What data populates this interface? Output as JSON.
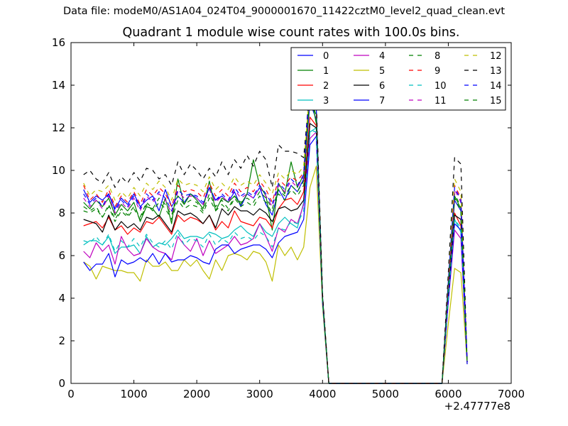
{
  "chart_data": {
    "type": "line",
    "suptitle": "Data file: modeM0/AS1A04_024T04_9000001670_11422cztM0_level2_quad_clean.evt",
    "title": "Quadrant 1 module wise count rates with 100.0s bins.",
    "xlabel": "",
    "ylabel": "",
    "x_offset_label": "+2.47777e8",
    "xlim": [
      0,
      7000
    ],
    "ylim": [
      0,
      16
    ],
    "xticks": [
      0,
      1000,
      2000,
      3000,
      4000,
      5000,
      6000,
      7000
    ],
    "yticks": [
      0,
      2,
      4,
      6,
      8,
      10,
      12,
      14,
      16
    ],
    "grid": false,
    "legend_position": "top-right",
    "x": [
      200,
      300,
      400,
      500,
      600,
      700,
      800,
      900,
      1000,
      1100,
      1200,
      1300,
      1400,
      1500,
      1600,
      1700,
      1800,
      1900,
      2000,
      2100,
      2200,
      2300,
      2400,
      2500,
      2600,
      2700,
      2800,
      2900,
      3000,
      3100,
      3200,
      3300,
      3400,
      3500,
      3600,
      3700,
      3800,
      3900,
      4000,
      4100,
      4200,
      4300,
      4400,
      4500,
      4600,
      4700,
      4800,
      4900,
      5000,
      5100,
      5200,
      5300,
      5400,
      5500,
      5600,
      5700,
      5800,
      5900,
      6000,
      6100,
      6200,
      6300
    ],
    "series": [
      {
        "name": "0",
        "color": "#0000ff",
        "dashed": false,
        "values": [
          9.1,
          8.5,
          8.8,
          8.6,
          8.9,
          8.2,
          8.7,
          8.4,
          8.9,
          8.3,
          8.6,
          8.8,
          8.1,
          9.1,
          8.3,
          8.8,
          8.5,
          8.9,
          8.7,
          8.4,
          9.2,
          8.6,
          8.8,
          8.5,
          9.0,
          8.3,
          8.9,
          8.7,
          9.2,
          8.4,
          7.9,
          9.1,
          8.6,
          9.3,
          9.0,
          9.6,
          13.2,
          12.4,
          4.0,
          0,
          0,
          0,
          0,
          0,
          0,
          0,
          0,
          0,
          0,
          0,
          0,
          0,
          0,
          0,
          0,
          0,
          0,
          0,
          4.5,
          8.6,
          8.1,
          1.0
        ]
      },
      {
        "name": "1",
        "color": "#008000",
        "dashed": false,
        "values": [
          8.5,
          8.2,
          8.6,
          8.3,
          8.7,
          7.9,
          8.4,
          8.1,
          8.5,
          7.6,
          8.3,
          8.2,
          7.8,
          8.7,
          7.5,
          9.6,
          8.4,
          8.9,
          8.6,
          8.2,
          9.5,
          8.1,
          8.7,
          8.5,
          8.8,
          8.4,
          8.9,
          10.5,
          9.3,
          8.8,
          7.2,
          9.4,
          8.9,
          10.4,
          9.2,
          9.8,
          13.8,
          12.2,
          4.0,
          0,
          0,
          0,
          0,
          0,
          0,
          0,
          0,
          0,
          0,
          0,
          0,
          0,
          0,
          0,
          0,
          0,
          0,
          0,
          4.6,
          8.8,
          8.2,
          1.0
        ]
      },
      {
        "name": "2",
        "color": "#ff0000",
        "dashed": false,
        "values": [
          7.4,
          7.5,
          7.6,
          7.3,
          7.8,
          7.2,
          7.4,
          7.0,
          7.3,
          7.1,
          7.6,
          7.5,
          7.8,
          7.4,
          7.0,
          7.9,
          7.6,
          7.8,
          7.7,
          7.5,
          7.9,
          7.2,
          7.6,
          7.3,
          8.1,
          7.6,
          7.5,
          7.4,
          7.8,
          7.7,
          7.3,
          8.2,
          8.6,
          8.7,
          8.4,
          9.0,
          12.5,
          12.1,
          3.9,
          0,
          0,
          0,
          0,
          0,
          0,
          0,
          0,
          0,
          0,
          0,
          0,
          0,
          0,
          0,
          0,
          0,
          0,
          0,
          4.3,
          8.0,
          7.4,
          1.0
        ]
      },
      {
        "name": "3",
        "color": "#00bfbf",
        "dashed": false,
        "values": [
          6.5,
          6.7,
          6.7,
          6.5,
          6.9,
          6.1,
          6.4,
          6.4,
          6.5,
          6.1,
          6.9,
          6.4,
          6.6,
          6.5,
          6.8,
          7.2,
          6.8,
          6.9,
          6.9,
          6.8,
          7.1,
          7.0,
          6.8,
          6.9,
          7.2,
          7.4,
          7.1,
          6.9,
          7.5,
          7.1,
          6.9,
          7.5,
          7.8,
          7.5,
          7.3,
          8.5,
          11.8,
          12.0,
          3.8,
          0,
          0,
          0,
          0,
          0,
          0,
          0,
          0,
          0,
          0,
          0,
          0,
          0,
          0,
          0,
          0,
          0,
          0,
          0,
          4.0,
          7.7,
          7.1,
          1.0
        ]
      },
      {
        "name": "4",
        "color": "#bf00bf",
        "dashed": false,
        "values": [
          6.2,
          5.9,
          6.6,
          6.2,
          6.5,
          5.6,
          6.9,
          6.3,
          6.0,
          6.1,
          6.8,
          6.4,
          6.2,
          6.1,
          5.8,
          6.9,
          6.5,
          6.2,
          6.8,
          6.0,
          6.7,
          6.1,
          6.3,
          6.5,
          6.9,
          6.5,
          6.6,
          6.8,
          7.5,
          6.9,
          6.2,
          7.3,
          7.1,
          7.7,
          7.5,
          8.4,
          11.5,
          11.8,
          3.8,
          0,
          0,
          0,
          0,
          0,
          0,
          0,
          0,
          0,
          0,
          0,
          0,
          0,
          0,
          0,
          0,
          0,
          0,
          0,
          3.8,
          7.2,
          6.8,
          1.0
        ]
      },
      {
        "name": "5",
        "color": "#bfbf00",
        "dashed": false,
        "values": [
          5.7,
          5.5,
          4.9,
          5.5,
          5.4,
          5.3,
          5.3,
          5.2,
          5.2,
          4.8,
          5.8,
          5.5,
          5.5,
          5.7,
          5.3,
          5.3,
          5.8,
          5.5,
          5.8,
          5.3,
          4.9,
          5.8,
          5.3,
          6.0,
          6.1,
          6.0,
          5.8,
          6.2,
          6.1,
          5.7,
          4.8,
          6.5,
          6.0,
          6.4,
          5.8,
          6.4,
          9.2,
          10.2,
          3.6,
          0,
          0,
          0,
          0,
          0,
          0,
          0,
          0,
          0,
          0,
          0,
          0,
          0,
          0,
          0,
          0,
          0,
          0,
          0,
          2.8,
          5.4,
          5.2,
          0.9
        ]
      },
      {
        "name": "6",
        "color": "#000000",
        "dashed": false,
        "values": [
          7.7,
          7.6,
          7.5,
          7.1,
          7.9,
          7.2,
          7.6,
          7.3,
          7.5,
          7.2,
          7.8,
          7.7,
          7.9,
          7.5,
          7.1,
          8.1,
          7.9,
          8.0,
          7.8,
          7.5,
          7.9,
          7.3,
          8.2,
          7.9,
          8.3,
          8.1,
          8.1,
          7.9,
          8.2,
          8.0,
          7.6,
          8.2,
          8.3,
          8.1,
          8.2,
          8.6,
          12.2,
          12.0,
          3.9,
          0,
          0,
          0,
          0,
          0,
          0,
          0,
          0,
          0,
          0,
          0,
          0,
          0,
          0,
          0,
          0,
          0,
          0,
          0,
          4.1,
          7.9,
          7.7,
          1.0
        ]
      },
      {
        "name": "7",
        "color": "#0000ff",
        "dashed": false,
        "values": [
          5.7,
          5.3,
          5.6,
          5.6,
          6.1,
          5.0,
          5.8,
          5.6,
          5.7,
          5.9,
          5.7,
          6.1,
          5.6,
          6.1,
          5.7,
          5.8,
          5.8,
          6.0,
          5.9,
          5.7,
          5.6,
          6.3,
          6.5,
          6.5,
          6.1,
          6.3,
          6.4,
          6.5,
          6.5,
          6.3,
          5.9,
          6.6,
          6.9,
          7.0,
          7.1,
          7.7,
          11.2,
          11.6,
          3.8,
          0,
          0,
          0,
          0,
          0,
          0,
          0,
          0,
          0,
          0,
          0,
          0,
          0,
          0,
          0,
          0,
          0,
          0,
          0,
          3.9,
          7.5,
          7.2,
          0.9
        ]
      },
      {
        "name": "8",
        "color": "#008000",
        "dashed": true,
        "values": [
          8.3,
          8.1,
          8.3,
          7.8,
          8.4,
          7.7,
          8.2,
          7.9,
          8.3,
          7.8,
          8.5,
          8.2,
          8.7,
          8.4,
          7.9,
          8.8,
          8.4,
          8.6,
          8.5,
          8.1,
          8.9,
          8.3,
          8.6,
          8.2,
          8.8,
          8.5,
          8.7,
          8.5,
          9.0,
          8.7,
          8.2,
          9.1,
          8.8,
          9.3,
          9.0,
          9.5,
          13.6,
          12.8,
          4.1,
          0,
          0,
          0,
          0,
          0,
          0,
          0,
          0,
          0,
          0,
          0,
          0,
          0,
          0,
          0,
          0,
          0,
          0,
          0,
          4.6,
          8.9,
          8.3,
          1.0
        ]
      },
      {
        "name": "9",
        "color": "#ff0000",
        "dashed": true,
        "values": [
          9.3,
          8.6,
          8.9,
          8.5,
          9.1,
          8.3,
          8.8,
          8.5,
          9.0,
          8.4,
          9.1,
          8.8,
          9.2,
          8.9,
          8.3,
          9.3,
          9.0,
          9.1,
          9.0,
          8.7,
          9.4,
          8.8,
          9.1,
          8.8,
          9.4,
          9.0,
          9.2,
          9.0,
          9.5,
          9.1,
          8.5,
          9.6,
          9.3,
          9.7,
          9.5,
          9.9,
          14.1,
          13.0,
          4.1,
          0,
          0,
          0,
          0,
          0,
          0,
          0,
          0,
          0,
          0,
          0,
          0,
          0,
          0,
          0,
          0,
          0,
          0,
          0,
          4.8,
          9.3,
          8.7,
          1.0
        ]
      },
      {
        "name": "10",
        "color": "#00bfbf",
        "dashed": true,
        "values": [
          6.7,
          6.6,
          6.9,
          6.5,
          7.0,
          6.2,
          6.7,
          6.4,
          6.8,
          6.4,
          7.0,
          6.6,
          6.4,
          6.7,
          6.3,
          7.1,
          6.5,
          6.8,
          6.7,
          6.4,
          7.0,
          6.5,
          6.8,
          6.6,
          7.1,
          6.8,
          6.9,
          6.7,
          7.1,
          6.9,
          6.4,
          7.3,
          7.2,
          7.6,
          7.5,
          8.1,
          11.9,
          11.8,
          3.8,
          0,
          0,
          0,
          0,
          0,
          0,
          0,
          0,
          0,
          0,
          0,
          0,
          0,
          0,
          0,
          0,
          0,
          0,
          0,
          4.0,
          7.7,
          7.3,
          1.0
        ]
      },
      {
        "name": "11",
        "color": "#bf00bf",
        "dashed": true,
        "values": [
          8.7,
          8.3,
          8.6,
          8.2,
          8.8,
          8.0,
          8.5,
          8.2,
          8.7,
          8.1,
          8.8,
          8.5,
          8.9,
          8.6,
          8.0,
          9.0,
          8.7,
          8.8,
          8.7,
          8.4,
          9.1,
          8.5,
          8.8,
          8.5,
          9.1,
          8.7,
          8.9,
          8.7,
          9.2,
          8.8,
          8.3,
          9.3,
          9.0,
          9.5,
          9.2,
          9.7,
          14.3,
          12.9,
          4.1,
          0,
          0,
          0,
          0,
          0,
          0,
          0,
          0,
          0,
          0,
          0,
          0,
          0,
          0,
          0,
          0,
          0,
          0,
          0,
          4.7,
          9.1,
          8.5,
          1.0
        ]
      },
      {
        "name": "12",
        "color": "#bfbf00",
        "dashed": true,
        "values": [
          9.4,
          8.8,
          9.1,
          9.0,
          9.3,
          8.6,
          9.0,
          8.7,
          9.2,
          8.8,
          9.4,
          9.1,
          9.5,
          9.2,
          8.6,
          9.6,
          9.3,
          9.4,
          9.3,
          9.0,
          9.7,
          9.1,
          9.4,
          9.1,
          9.7,
          9.3,
          9.5,
          9.3,
          9.8,
          9.4,
          8.9,
          9.9,
          9.6,
          10.0,
          9.8,
          10.2,
          14.0,
          13.1,
          4.2,
          0,
          0,
          0,
          0,
          0,
          0,
          0,
          0,
          0,
          0,
          0,
          0,
          0,
          0,
          0,
          0,
          0,
          0,
          0,
          5.0,
          9.6,
          9.0,
          1.0
        ]
      },
      {
        "name": "13",
        "color": "#000000",
        "dashed": true,
        "values": [
          9.8,
          10.0,
          9.6,
          9.4,
          9.9,
          9.2,
          9.7,
          9.4,
          9.9,
          9.5,
          10.1,
          10.0,
          9.6,
          9.8,
          9.3,
          10.4,
          9.8,
          10.3,
          10.0,
          9.6,
          10.1,
          9.7,
          10.4,
          9.8,
          10.5,
          10.1,
          10.7,
          10.2,
          10.9,
          10.5,
          9.2,
          11.2,
          10.9,
          10.9,
          10.8,
          10.6,
          13.9,
          13.3,
          4.2,
          0,
          0,
          0,
          0,
          0,
          0,
          0,
          0,
          0,
          0,
          0,
          0,
          0,
          0,
          0,
          0,
          0,
          0,
          0,
          5.2,
          10.6,
          10.3,
          1.0
        ]
      },
      {
        "name": "14",
        "color": "#0000ff",
        "dashed": true,
        "values": [
          8.9,
          8.4,
          8.7,
          8.3,
          8.9,
          8.1,
          8.6,
          8.3,
          8.8,
          8.2,
          8.9,
          8.6,
          9.0,
          8.7,
          8.1,
          9.1,
          8.8,
          8.9,
          8.8,
          8.5,
          9.2,
          8.6,
          8.9,
          8.6,
          9.2,
          8.8,
          9.0,
          8.8,
          9.3,
          8.9,
          8.4,
          9.4,
          9.1,
          9.6,
          9.3,
          9.8,
          14.4,
          13.0,
          4.1,
          0,
          0,
          0,
          0,
          0,
          0,
          0,
          0,
          0,
          0,
          0,
          0,
          0,
          0,
          0,
          0,
          0,
          0,
          0,
          4.8,
          9.2,
          8.6,
          1.0
        ]
      },
      {
        "name": "15",
        "color": "#008000",
        "dashed": true,
        "values": [
          8.1,
          8.0,
          8.2,
          7.8,
          8.3,
          7.6,
          8.1,
          7.8,
          8.2,
          7.7,
          8.4,
          8.1,
          8.5,
          8.2,
          7.7,
          8.6,
          8.2,
          8.4,
          8.3,
          8.0,
          8.7,
          8.1,
          8.4,
          8.1,
          8.7,
          8.3,
          8.5,
          8.3,
          8.8,
          8.5,
          8.0,
          8.9,
          8.6,
          9.1,
          8.8,
          9.3,
          13.4,
          12.6,
          4.0,
          0,
          0,
          0,
          0,
          0,
          0,
          0,
          0,
          0,
          0,
          0,
          0,
          0,
          0,
          0,
          0,
          0,
          0,
          0,
          4.5,
          8.7,
          8.1,
          1.0
        ]
      }
    ]
  }
}
